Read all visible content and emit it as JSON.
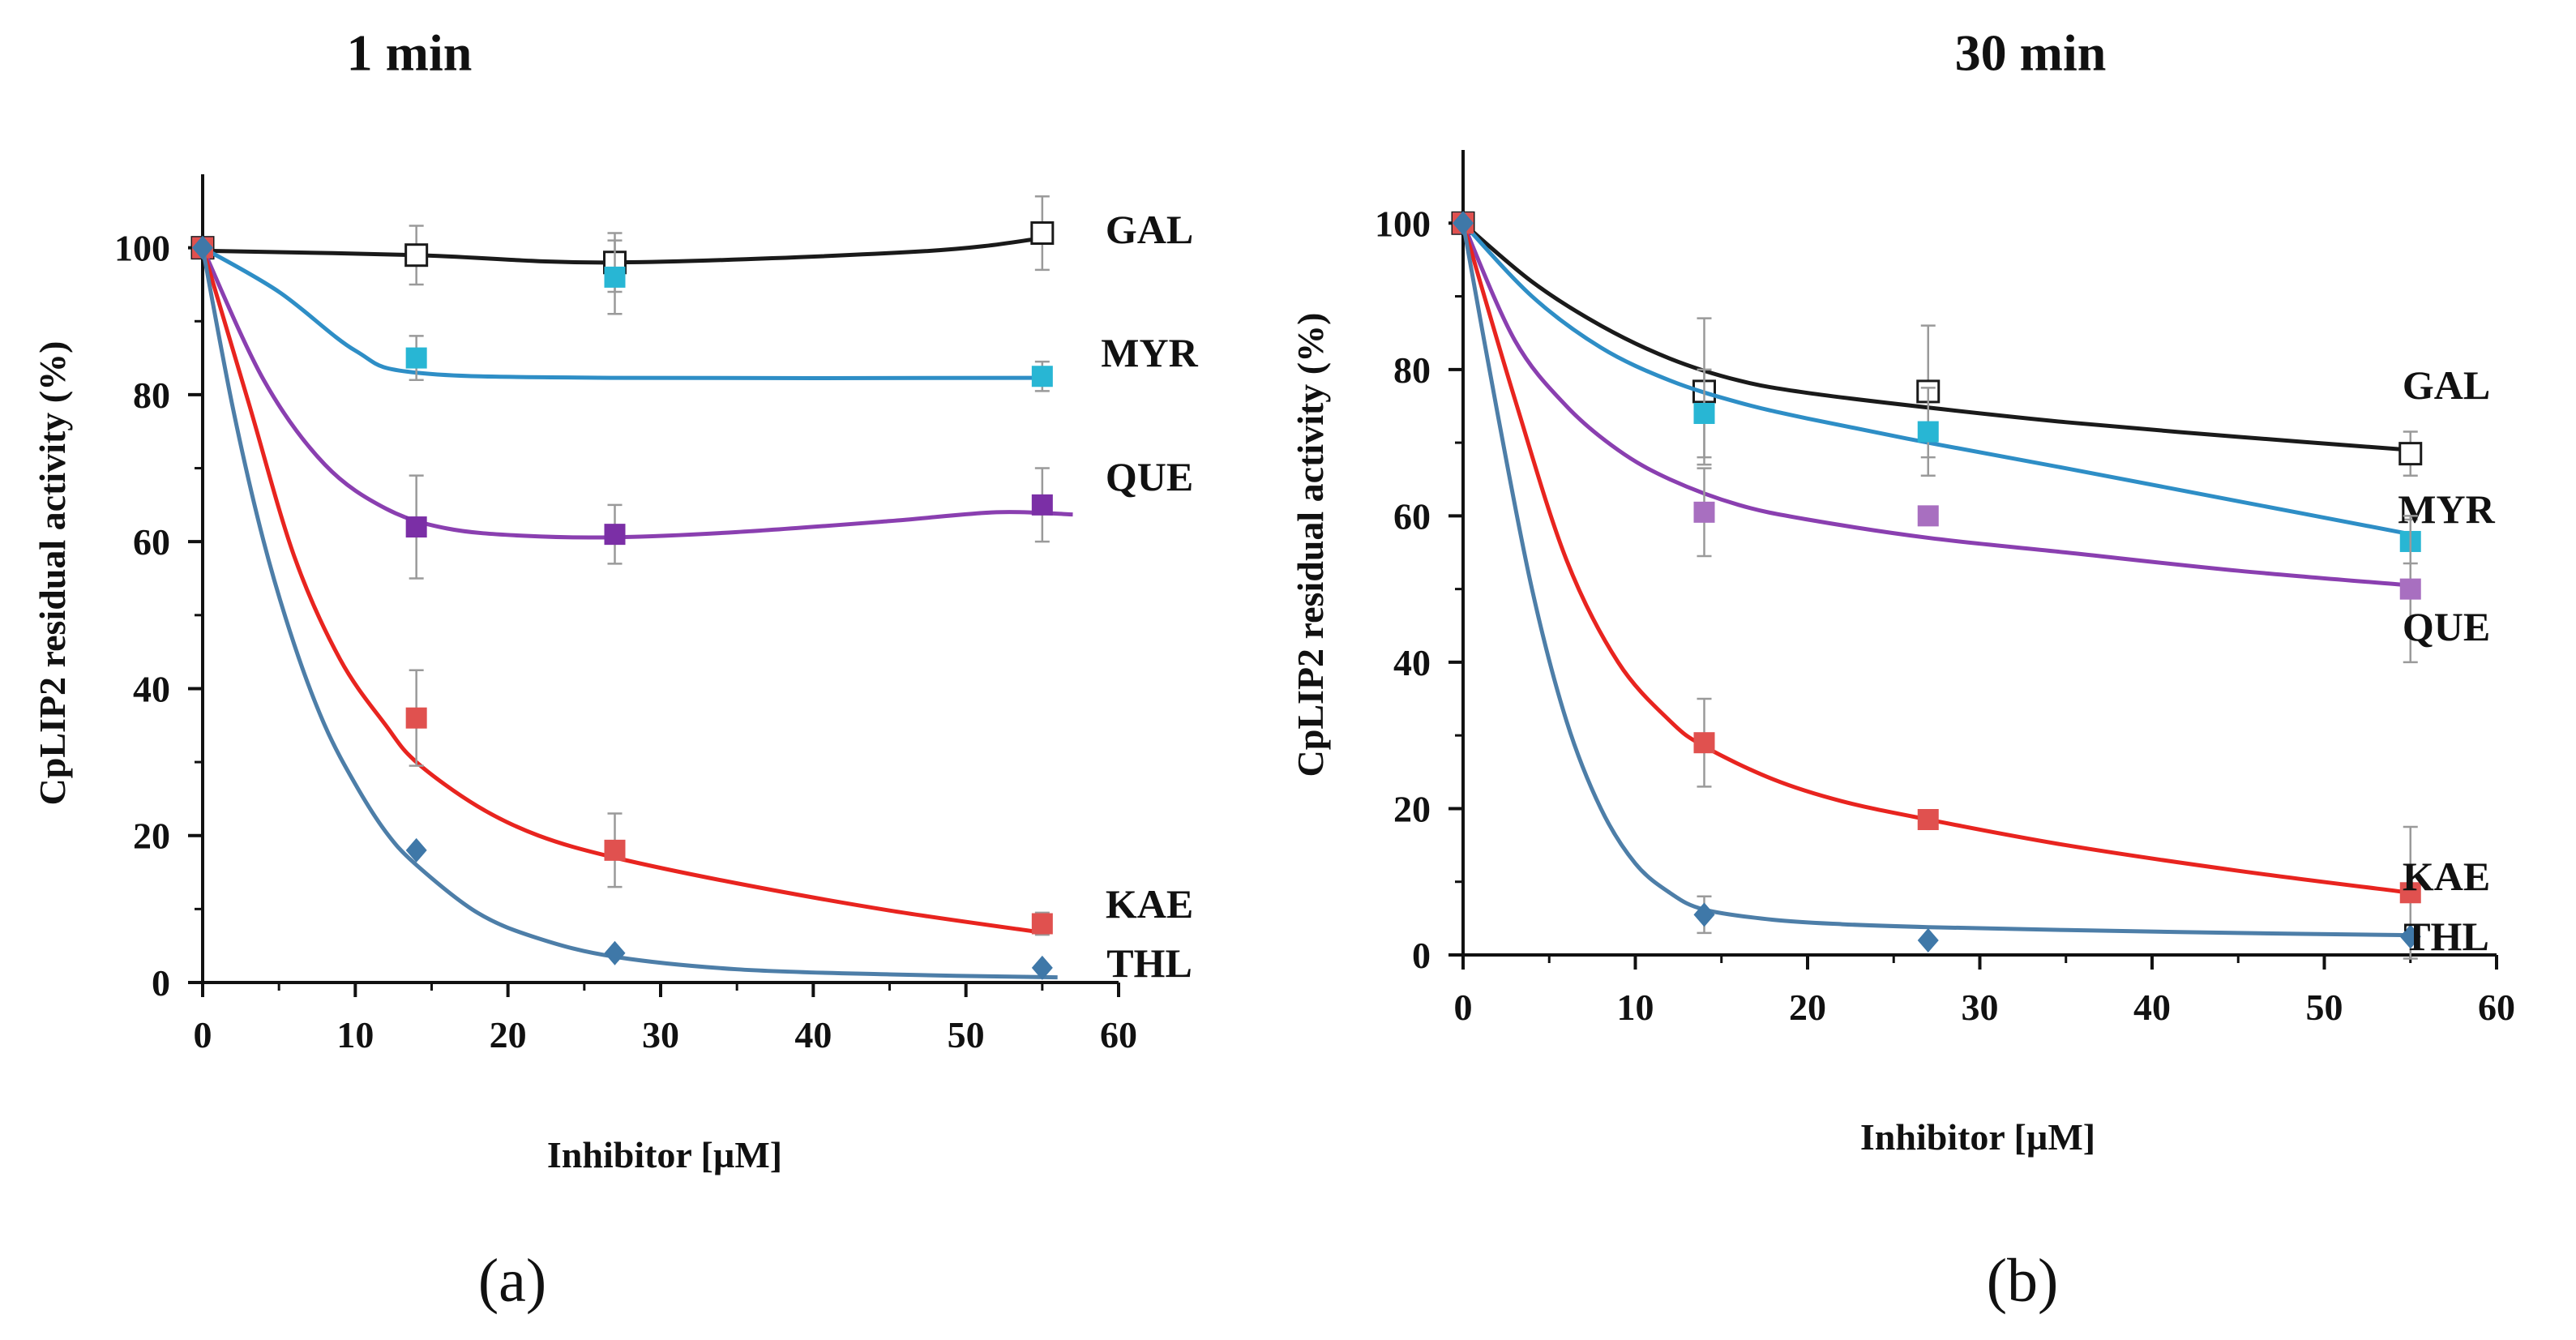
{
  "chart_data": [
    {
      "type": "line",
      "panel_label": "(a)",
      "title": "1 min",
      "xlabel": "Inhibitor [µM]",
      "ylabel": "CpLIP2 residual activity  (%)",
      "xlim": [
        0,
        60
      ],
      "ylim": [
        0,
        110
      ],
      "xticks": [
        0,
        10,
        20,
        30,
        40,
        50,
        60
      ],
      "yticks": [
        0,
        20,
        40,
        60,
        80,
        100
      ],
      "series": [
        {
          "name": "GAL",
          "color": "#1a1a1a",
          "marker": "open-square",
          "x": [
            0,
            14,
            27,
            55
          ],
          "y": [
            100,
            99,
            98,
            102
          ],
          "err": [
            0,
            4,
            4,
            5
          ],
          "curve": [
            [
              0,
              99.6
            ],
            [
              14,
              99
            ],
            [
              27,
              98
            ],
            [
              47,
              99.5
            ],
            [
              55,
              101.3
            ]
          ]
        },
        {
          "name": "MYR",
          "color": "#2e8ec6",
          "marker_color": "#28b6d4",
          "marker": "square",
          "x": [
            0,
            14,
            27,
            55
          ],
          "y": [
            100,
            85,
            96,
            82.5
          ],
          "err": [
            0,
            3,
            5,
            2
          ],
          "curve": [
            [
              0,
              100
            ],
            [
              5,
              94
            ],
            [
              10,
              86
            ],
            [
              14,
              83
            ],
            [
              27,
              82.3
            ],
            [
              55,
              82.3
            ]
          ]
        },
        {
          "name": "QUE",
          "color": "#8a3fb0",
          "marker_color": "#7b2fa6",
          "marker": "square",
          "x": [
            0,
            14,
            27,
            55
          ],
          "y": [
            100,
            62,
            61,
            65
          ],
          "err": [
            0,
            7,
            4,
            5
          ],
          "curve": [
            [
              0,
              100
            ],
            [
              4,
              82
            ],
            [
              8,
              70.5
            ],
            [
              12,
              64.5
            ],
            [
              16,
              61.8
            ],
            [
              21,
              60.8
            ],
            [
              27,
              60.6
            ],
            [
              35,
              61.3
            ],
            [
              45,
              62.8
            ],
            [
              52,
              64
            ],
            [
              57,
              63.7
            ]
          ]
        },
        {
          "name": "KAE",
          "color": "#e8241f",
          "marker_color": "#e0514f",
          "marker": "square",
          "x": [
            0,
            14,
            27,
            55
          ],
          "y": [
            100,
            36,
            18,
            8
          ],
          "err": [
            0,
            6.5,
            5,
            1.5
          ],
          "curve": [
            [
              0,
              100
            ],
            [
              3,
              79
            ],
            [
              6,
              58
            ],
            [
              9,
              44
            ],
            [
              12,
              35
            ],
            [
              14,
              30
            ],
            [
              18,
              24
            ],
            [
              22,
              20
            ],
            [
              27,
              17
            ],
            [
              35,
              13.5
            ],
            [
              45,
              9.8
            ],
            [
              55,
              6.8
            ]
          ]
        },
        {
          "name": "THL",
          "color": "#4d7ea8",
          "marker_color": "#3f78a8",
          "marker": "diamond",
          "x": [
            0,
            14,
            27,
            55
          ],
          "y": [
            100,
            18,
            4,
            2
          ],
          "err": [
            0,
            0,
            0,
            0
          ],
          "curve": [
            [
              0,
              100
            ],
            [
              2,
              78
            ],
            [
              4,
              60
            ],
            [
              6,
              46
            ],
            [
              8,
              35
            ],
            [
              10,
              27
            ],
            [
              12,
              20.5
            ],
            [
              14,
              16
            ],
            [
              18,
              9.5
            ],
            [
              22,
              6
            ],
            [
              27,
              3.5
            ],
            [
              35,
              1.8
            ],
            [
              45,
              1.1
            ],
            [
              56,
              0.7
            ]
          ]
        }
      ]
    },
    {
      "type": "line",
      "panel_label": "(b)",
      "title": "30 min",
      "xlabel": "Inhibitor [µM]",
      "ylabel": "CpLIP2 residual activity  (%)",
      "xlim": [
        0,
        60
      ],
      "ylim": [
        0,
        110
      ],
      "xticks": [
        0,
        10,
        20,
        30,
        40,
        50,
        60
      ],
      "yticks": [
        0,
        20,
        40,
        60,
        80,
        100
      ],
      "series": [
        {
          "name": "GAL",
          "color": "#1a1a1a",
          "marker": "open-square",
          "x": [
            0,
            14,
            27,
            55
          ],
          "y": [
            100,
            77,
            77,
            68.5
          ],
          "err": [
            0,
            10,
            9,
            3
          ],
          "curve": [
            [
              0,
              100
            ],
            [
              4,
              92
            ],
            [
              8,
              86
            ],
            [
              12,
              81.5
            ],
            [
              16,
              78.5
            ],
            [
              20,
              76.8
            ],
            [
              27,
              74.8
            ],
            [
              35,
              72.8
            ],
            [
              45,
              70.8
            ],
            [
              55,
              69
            ]
          ]
        },
        {
          "name": "MYR",
          "color": "#2e8ec6",
          "marker_color": "#28b6d4",
          "marker": "square",
          "x": [
            0,
            14,
            27,
            55
          ],
          "y": [
            100,
            74,
            71.5,
            56.5
          ],
          "err": [
            0,
            6,
            6,
            3
          ],
          "curve": [
            [
              0,
              100
            ],
            [
              4,
              90
            ],
            [
              8,
              83
            ],
            [
              12,
              78.5
            ],
            [
              16,
              75.5
            ],
            [
              20,
              73.3
            ],
            [
              27,
              70
            ],
            [
              35,
              66.5
            ],
            [
              45,
              62
            ],
            [
              55,
              57.5
            ]
          ]
        },
        {
          "name": "QUE",
          "color": "#8a3fb0",
          "marker_color": "#a86fc0",
          "marker": "square",
          "x": [
            0,
            14,
            27,
            55
          ],
          "y": [
            100,
            60.5,
            60,
            50
          ],
          "err": [
            0,
            6,
            0,
            10
          ],
          "curve": [
            [
              0,
              100
            ],
            [
              3,
              84
            ],
            [
              6,
              75
            ],
            [
              9,
              69
            ],
            [
              12,
              65
            ],
            [
              16,
              61.5
            ],
            [
              20,
              59.5
            ],
            [
              27,
              57
            ],
            [
              35,
              55
            ],
            [
              45,
              52.5
            ],
            [
              55,
              50.5
            ]
          ]
        },
        {
          "name": "KAE",
          "color": "#e8241f",
          "marker_color": "#e0514f",
          "marker": "square",
          "x": [
            0,
            14,
            27,
            55
          ],
          "y": [
            100,
            29,
            18.5,
            8.5
          ],
          "err": [
            0,
            6,
            0,
            9
          ],
          "curve": [
            [
              0,
              100
            ],
            [
              3,
              76
            ],
            [
              6,
              54
            ],
            [
              9,
              40
            ],
            [
              12,
              32
            ],
            [
              14,
              28.5
            ],
            [
              18,
              24
            ],
            [
              22,
              21
            ],
            [
              27,
              18.5
            ],
            [
              35,
              15
            ],
            [
              45,
              11.5
            ],
            [
              55,
              8.5
            ]
          ]
        },
        {
          "name": "THL",
          "color": "#4d7ea8",
          "marker_color": "#3f78a8",
          "marker": "diamond",
          "x": [
            0,
            14,
            27,
            55
          ],
          "y": [
            100,
            5.5,
            2,
            2.5
          ],
          "err": [
            0,
            2.5,
            0,
            0
          ],
          "curve": [
            [
              0,
              100
            ],
            [
              2,
              74
            ],
            [
              4,
              50
            ],
            [
              6,
              32
            ],
            [
              8,
              20
            ],
            [
              10,
              12.5
            ],
            [
              12,
              8.5
            ],
            [
              14,
              6.2
            ],
            [
              18,
              4.8
            ],
            [
              22,
              4.2
            ],
            [
              27,
              3.8
            ],
            [
              35,
              3.4
            ],
            [
              45,
              3
            ],
            [
              55,
              2.7
            ]
          ]
        }
      ]
    }
  ]
}
